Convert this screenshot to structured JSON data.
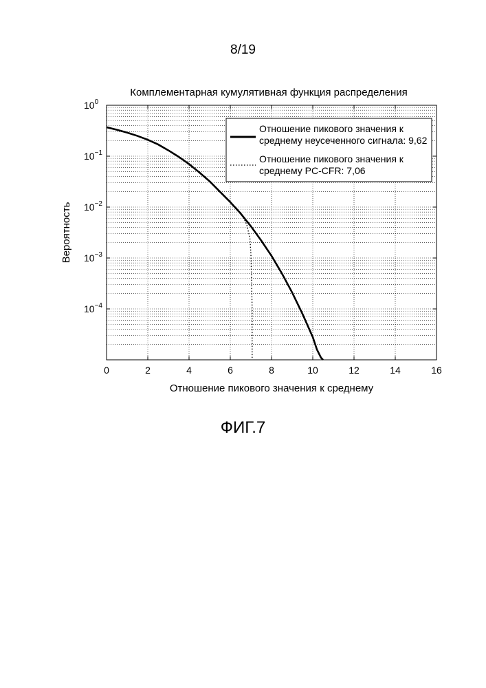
{
  "page": {
    "page_number": "8/19",
    "figure_caption": "ФИГ.7"
  },
  "chart_data": {
    "type": "line",
    "title": "Комплементарная кумулятивная функция распределения",
    "xlabel": "Отношение пикового значения к среднему",
    "ylabel": "Вероятность",
    "xlim": [
      0,
      16
    ],
    "ylim": [
      1e-05,
      1
    ],
    "yscale": "log",
    "grid": true,
    "legend_position": "top-right",
    "x_ticks": [
      0,
      2,
      4,
      6,
      8,
      10,
      12,
      14,
      16
    ],
    "y_ticks": [
      {
        "value": 1,
        "base": "10",
        "exp": "0"
      },
      {
        "value": 0.1,
        "base": "10",
        "exp": "−1"
      },
      {
        "value": 0.01,
        "base": "10",
        "exp": "−2"
      },
      {
        "value": 0.001,
        "base": "10",
        "exp": "−3"
      },
      {
        "value": 0.0001,
        "base": "10",
        "exp": "−4"
      }
    ],
    "series": [
      {
        "legend_line1": "Отношение пикового значения к",
        "legend_line2": "среднему неусеченного сигнала: 9,62",
        "style": "solid",
        "color": "#000000",
        "x": [
          0,
          0.5,
          1,
          1.5,
          2,
          2.5,
          3,
          3.5,
          4,
          4.5,
          5,
          5.5,
          6,
          6.5,
          7,
          7.5,
          8,
          8.5,
          9,
          9.5,
          10,
          10.2,
          10.4,
          10.5
        ],
        "y": [
          0.37,
          0.33,
          0.29,
          0.25,
          0.21,
          0.17,
          0.13,
          0.097,
          0.07,
          0.048,
          0.032,
          0.02,
          0.0125,
          0.0075,
          0.0042,
          0.0022,
          0.0011,
          0.0005,
          0.00021,
          8e-05,
          2.8e-05,
          1.6e-05,
          1.1e-05,
          1e-05
        ]
      },
      {
        "legend_line1": "Отношение пикового значения к",
        "legend_line2": "среднему PC-CFR: 7,06",
        "style": "dotted",
        "color": "#000000",
        "x": [
          0,
          0.5,
          1,
          1.5,
          2,
          2.5,
          3,
          3.5,
          4,
          4.5,
          5,
          5.5,
          6,
          6.3,
          6.6,
          6.8,
          6.95,
          7.0,
          7.03,
          7.06,
          7.06
        ],
        "y": [
          0.37,
          0.33,
          0.29,
          0.25,
          0.21,
          0.17,
          0.13,
          0.097,
          0.07,
          0.048,
          0.032,
          0.02,
          0.0125,
          0.0095,
          0.0068,
          0.0045,
          0.0025,
          0.0012,
          0.0004,
          0.0001,
          1e-05
        ]
      }
    ]
  }
}
